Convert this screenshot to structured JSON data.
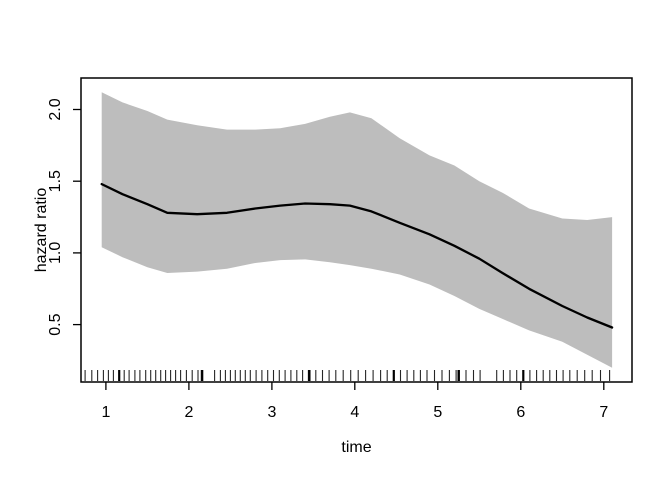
{
  "chart_data": {
    "type": "line",
    "title": "",
    "xlabel": "time",
    "ylabel": "hazard ratio",
    "xlim": [
      0.7,
      7.34
    ],
    "ylim": [
      0.1,
      2.22
    ],
    "x_ticks": [
      1,
      2,
      3,
      4,
      5,
      6,
      7
    ],
    "x_tick_labels": [
      "1",
      "2",
      "3",
      "4",
      "5",
      "6",
      "7"
    ],
    "y_ticks": [
      0.5,
      1.0,
      1.5,
      2.0
    ],
    "y_tick_labels": [
      "0.5",
      "1.0",
      "1.5",
      "2.0"
    ],
    "grid": false,
    "legend": "none",
    "band_color": "#bdbdbd",
    "line_color": "#000000",
    "x": [
      0.95,
      1.2,
      1.5,
      1.74,
      2.1,
      2.46,
      2.8,
      3.1,
      3.4,
      3.7,
      3.94,
      4.2,
      4.54,
      4.9,
      5.2,
      5.5,
      5.78,
      6.1,
      6.5,
      6.8,
      7.1
    ],
    "series": [
      {
        "name": "hazard-ratio-fit",
        "y": [
          1.48,
          1.41,
          1.34,
          1.28,
          1.27,
          1.28,
          1.31,
          1.33,
          1.345,
          1.34,
          1.33,
          1.29,
          1.21,
          1.13,
          1.05,
          0.96,
          0.86,
          0.75,
          0.63,
          0.55,
          0.48
        ]
      },
      {
        "name": "upper-confidence-limit",
        "y": [
          2.12,
          2.05,
          1.99,
          1.93,
          1.89,
          1.86,
          1.86,
          1.87,
          1.9,
          1.95,
          1.98,
          1.94,
          1.8,
          1.68,
          1.61,
          1.5,
          1.42,
          1.31,
          1.24,
          1.23,
          1.25
        ]
      },
      {
        "name": "lower-confidence-limit",
        "y": [
          1.04,
          0.97,
          0.9,
          0.86,
          0.87,
          0.89,
          0.93,
          0.95,
          0.955,
          0.935,
          0.915,
          0.89,
          0.85,
          0.78,
          0.7,
          0.61,
          0.54,
          0.46,
          0.38,
          0.29,
          0.2
        ]
      }
    ],
    "rug_x": [
      0.75,
      0.83,
      0.9,
      0.97,
      1.03,
      1.09,
      1.16,
      1.22,
      1.28,
      1.35,
      1.41,
      1.48,
      1.54,
      1.6,
      1.66,
      1.72,
      1.78,
      1.84,
      1.9,
      1.97,
      2.04,
      2.11,
      2.15,
      2.16,
      2.31,
      2.38,
      2.44,
      2.5,
      2.56,
      2.62,
      2.68,
      2.74,
      2.81,
      2.88,
      2.95,
      3.02,
      3.09,
      3.16,
      3.23,
      3.3,
      3.37,
      3.44,
      3.46,
      3.53,
      3.61,
      3.69,
      3.77,
      3.86,
      3.95,
      4.04,
      4.13,
      4.22,
      4.31,
      4.39,
      4.47,
      4.55,
      4.63,
      4.71,
      4.79,
      4.87,
      4.96,
      5.05,
      5.14,
      5.22,
      5.26,
      5.34,
      5.43,
      5.51,
      5.71,
      5.79,
      5.87,
      5.95,
      6.03,
      6.11,
      6.19,
      6.27,
      6.35,
      6.43,
      6.51,
      6.59,
      6.68,
      6.77,
      6.86,
      6.96,
      7.07
    ],
    "rug_bold_x": [
      1.16,
      2.16,
      3.45,
      4.47,
      5.25,
      6.03
    ]
  }
}
